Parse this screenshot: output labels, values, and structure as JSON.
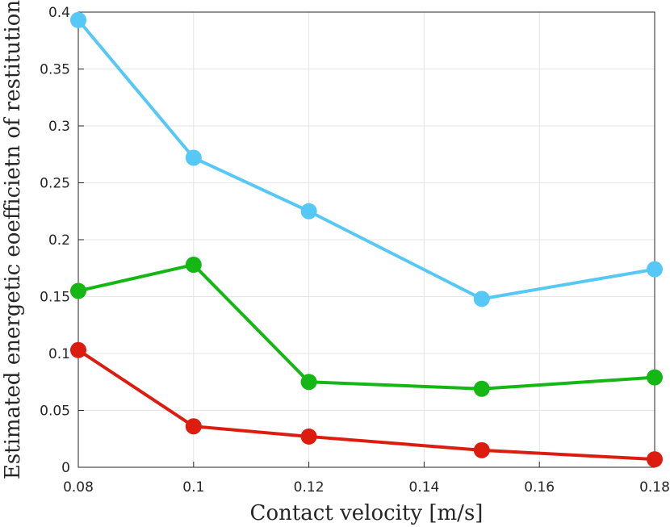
{
  "chart_data": {
    "type": "line",
    "title": "",
    "xlabel": "Contact velocity [m/s]",
    "ylabel": "Estimated energetic eoefficietn of restitution",
    "xlim": [
      0.08,
      0.18
    ],
    "ylim": [
      0,
      0.4
    ],
    "grid": true,
    "x_ticks": [
      0.08,
      0.1,
      0.12,
      0.14,
      0.16,
      0.18
    ],
    "x_tick_labels": [
      "0.08",
      "0.1",
      "0.12",
      "0.14",
      "0.16",
      "0.18"
    ],
    "y_ticks": [
      0,
      0.05,
      0.1,
      0.15,
      0.2,
      0.25,
      0.3,
      0.35,
      0.4
    ],
    "y_tick_labels": [
      "0",
      "0.05",
      "0.1",
      "0.15",
      "0.2",
      "0.25",
      "0.3",
      "0.35",
      "0.4"
    ],
    "x": [
      0.08,
      0.1,
      0.12,
      0.15,
      0.18
    ],
    "series": [
      {
        "name": "series-light-blue",
        "color": "#56c8f5",
        "values": [
          0.393,
          0.272,
          0.225,
          0.148,
          0.174
        ]
      },
      {
        "name": "series-green",
        "color": "#14b714",
        "values": [
          0.155,
          0.178,
          0.075,
          0.069,
          0.079
        ]
      },
      {
        "name": "series-red",
        "color": "#dd1c10",
        "values": [
          0.103,
          0.036,
          0.027,
          0.015,
          0.007
        ]
      }
    ]
  }
}
